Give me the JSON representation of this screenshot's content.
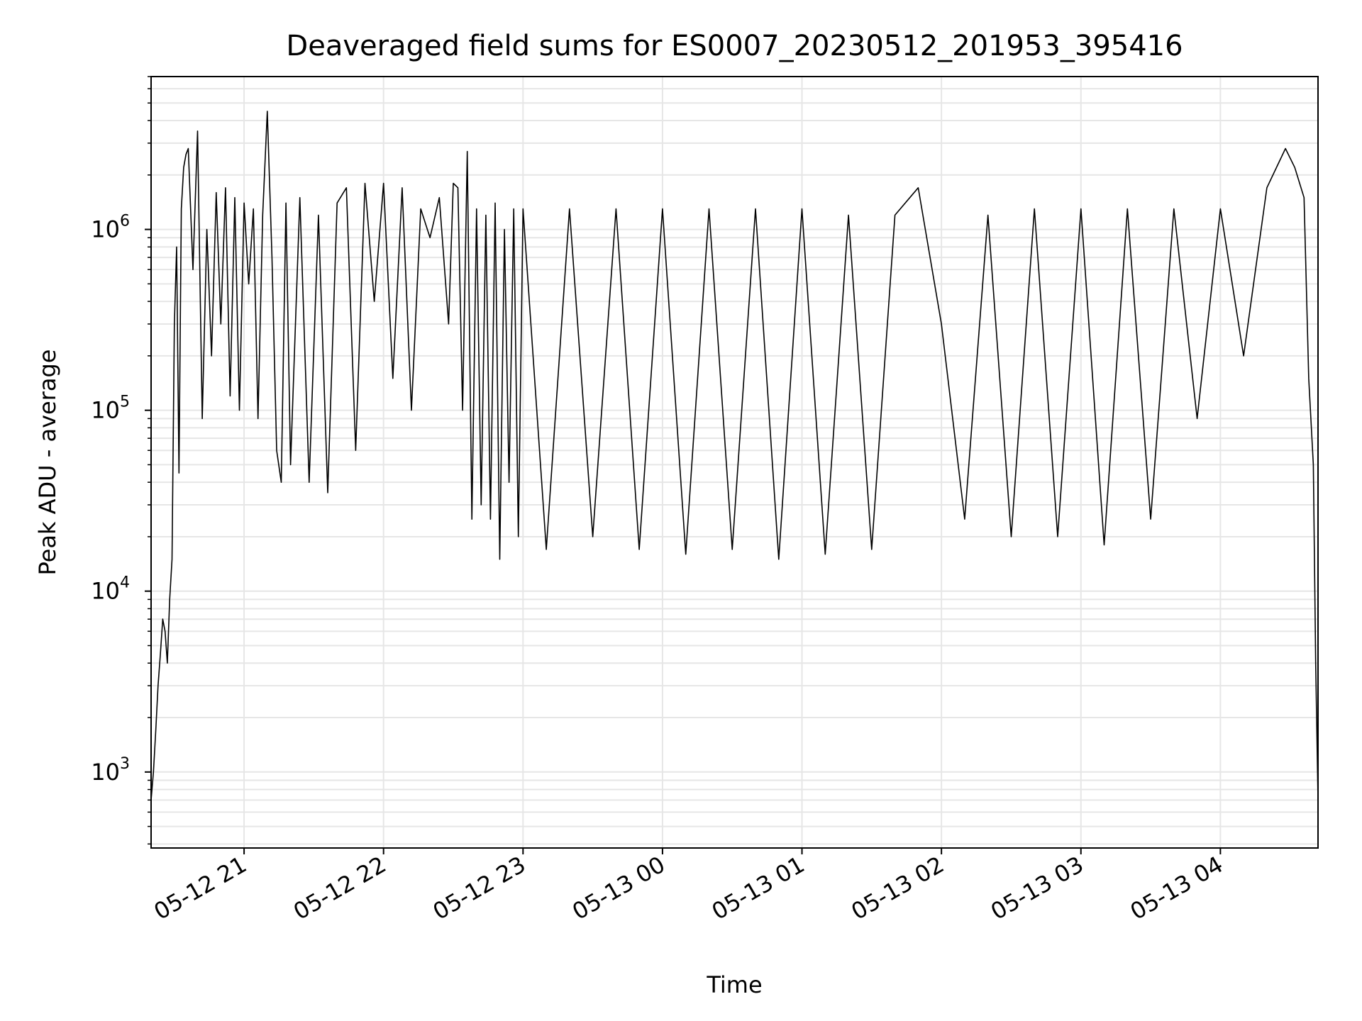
{
  "chart_data": {
    "type": "line",
    "title": "Deaveraged field sums for ES0007_20230512_201953_395416",
    "xlabel": "Time",
    "ylabel": "Peak ADU - average",
    "yscale": "log",
    "grid": true,
    "grid_minor": true,
    "line_color": "#000000",
    "grid_color": "#e6e6e6",
    "xlim": [
      "2023-05-12 20:20",
      "2023-05-13 04:42"
    ],
    "ylim": [
      380,
      7000000
    ],
    "x_ticks": [
      {
        "value": "2023-05-12 21:00",
        "label": "05-12 21"
      },
      {
        "value": "2023-05-12 22:00",
        "label": "05-12 22"
      },
      {
        "value": "2023-05-12 23:00",
        "label": "05-12 23"
      },
      {
        "value": "2023-05-13 00:00",
        "label": "05-13 00"
      },
      {
        "value": "2023-05-13 01:00",
        "label": "05-13 01"
      },
      {
        "value": "2023-05-13 02:00",
        "label": "05-13 02"
      },
      {
        "value": "2023-05-13 03:00",
        "label": "05-13 03"
      },
      {
        "value": "2023-05-13 04:00",
        "label": "05-13 04"
      }
    ],
    "y_ticks": [
      {
        "value": 1000,
        "base": "10",
        "exp": "3"
      },
      {
        "value": 10000,
        "base": "10",
        "exp": "4"
      },
      {
        "value": 100000,
        "base": "10",
        "exp": "5"
      },
      {
        "value": 1000000,
        "base": "10",
        "exp": "6"
      }
    ],
    "series": [
      {
        "x": [
          "2023-05-12 20:20",
          "2023-05-12 20:21",
          "2023-05-12 20:22",
          "2023-05-12 20:23",
          "2023-05-12 20:24",
          "2023-05-12 20:25",
          "2023-05-12 20:26",
          "2023-05-12 20:27",
          "2023-05-12 20:28",
          "2023-05-12 20:29",
          "2023-05-12 20:30",
          "2023-05-12 20:31",
          "2023-05-12 20:32",
          "2023-05-12 20:33",
          "2023-05-12 20:34",
          "2023-05-12 20:35",
          "2023-05-12 20:36",
          "2023-05-12 20:38",
          "2023-05-12 20:40",
          "2023-05-12 20:42",
          "2023-05-12 20:44",
          "2023-05-12 20:46",
          "2023-05-12 20:48",
          "2023-05-12 20:50",
          "2023-05-12 20:52",
          "2023-05-12 20:54",
          "2023-05-12 20:56",
          "2023-05-12 20:58",
          "2023-05-12 21:00",
          "2023-05-12 21:02",
          "2023-05-12 21:04",
          "2023-05-12 21:06",
          "2023-05-12 21:08",
          "2023-05-12 21:10",
          "2023-05-12 21:12",
          "2023-05-12 21:14",
          "2023-05-12 21:16",
          "2023-05-12 21:18",
          "2023-05-12 21:20",
          "2023-05-12 21:24",
          "2023-05-12 21:28",
          "2023-05-12 21:32",
          "2023-05-12 21:36",
          "2023-05-12 21:40",
          "2023-05-12 21:44",
          "2023-05-12 21:48",
          "2023-05-12 21:52",
          "2023-05-12 21:56",
          "2023-05-12 22:00",
          "2023-05-12 22:04",
          "2023-05-12 22:08",
          "2023-05-12 22:12",
          "2023-05-12 22:16",
          "2023-05-12 22:20",
          "2023-05-12 22:24",
          "2023-05-12 22:28",
          "2023-05-12 22:30",
          "2023-05-12 22:32",
          "2023-05-12 22:34",
          "2023-05-12 22:36",
          "2023-05-12 22:38",
          "2023-05-12 22:40",
          "2023-05-12 22:42",
          "2023-05-12 22:44",
          "2023-05-12 22:46",
          "2023-05-12 22:48",
          "2023-05-12 22:50",
          "2023-05-12 22:52",
          "2023-05-12 22:54",
          "2023-05-12 22:56",
          "2023-05-12 22:58",
          "2023-05-12 23:00",
          "2023-05-12 23:10",
          "2023-05-12 23:20",
          "2023-05-12 23:30",
          "2023-05-12 23:40",
          "2023-05-12 23:50",
          "2023-05-13 00:00",
          "2023-05-13 00:10",
          "2023-05-13 00:20",
          "2023-05-13 00:30",
          "2023-05-13 00:40",
          "2023-05-13 00:50",
          "2023-05-13 01:00",
          "2023-05-13 01:10",
          "2023-05-13 01:20",
          "2023-05-13 01:30",
          "2023-05-13 01:40",
          "2023-05-13 01:50",
          "2023-05-13 02:00",
          "2023-05-13 02:10",
          "2023-05-13 02:20",
          "2023-05-13 02:30",
          "2023-05-13 02:40",
          "2023-05-13 02:50",
          "2023-05-13 03:00",
          "2023-05-13 03:10",
          "2023-05-13 03:20",
          "2023-05-13 03:30",
          "2023-05-13 03:40",
          "2023-05-13 03:50",
          "2023-05-13 04:00",
          "2023-05-13 04:10",
          "2023-05-13 04:20",
          "2023-05-13 04:28",
          "2023-05-13 04:32",
          "2023-05-13 04:36",
          "2023-05-13 04:38",
          "2023-05-13 04:40",
          "2023-05-13 04:41",
          "2023-05-13 04:42"
        ],
        "y": [
          700,
          1000,
          1700,
          3000,
          4500,
          7000,
          6000,
          4000,
          9000,
          15000,
          300000,
          800000,
          45000,
          1300000,
          2200000,
          2600000,
          2800000,
          600000,
          3500000,
          90000,
          1000000,
          200000,
          1600000,
          300000,
          1700000,
          120000,
          1500000,
          100000,
          1400000,
          500000,
          1300000,
          90000,
          1200000,
          4500000,
          700000,
          60000,
          40000,
          1400000,
          50000,
          1500000,
          40000,
          1200000,
          35000,
          1400000,
          1700000,
          60000,
          1800000,
          400000,
          1800000,
          150000,
          1700000,
          100000,
          1300000,
          900000,
          1500000,
          300000,
          1800000,
          1700000,
          100000,
          2700000,
          25000,
          1300000,
          30000,
          1200000,
          25000,
          1400000,
          15000,
          1000000,
          40000,
          1300000,
          20000,
          1300000,
          17000,
          1300000,
          20000,
          1300000,
          17000,
          1300000,
          16000,
          1300000,
          17000,
          1300000,
          15000,
          1300000,
          16000,
          1200000,
          17000,
          1200000,
          1700000,
          300000,
          25000,
          1200000,
          20000,
          1300000,
          20000,
          1300000,
          18000,
          1300000,
          25000,
          1300000,
          90000,
          1300000,
          200000,
          1700000,
          2800000,
          2200000,
          1500000,
          150000,
          50000,
          4000,
          700
        ]
      }
    ]
  }
}
